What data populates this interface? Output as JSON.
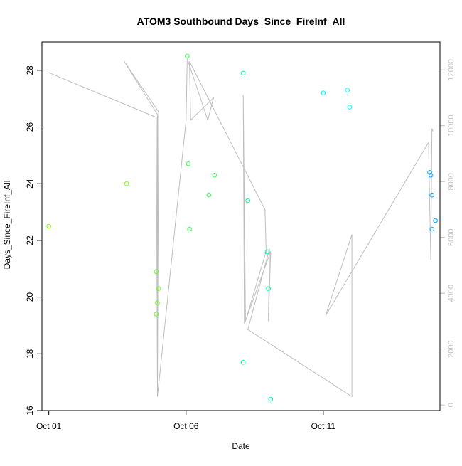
{
  "chart_data": {
    "type": "scatter",
    "title": "ATOM3 Southbound Days_Since_FireInf_All",
    "xlabel": "Date",
    "ylabel": "Days_Since_FireInf_All",
    "y2label": "",
    "xlim": [
      "2016-09-30T18:00",
      "2016-10-15T06:00"
    ],
    "ylim": [
      16,
      29
    ],
    "y2lim": [
      -200,
      13000
    ],
    "x_ticks": [
      {
        "date": "2016-10-01",
        "label": "Oct 01"
      },
      {
        "date": "2016-10-06",
        "label": "Oct 06"
      },
      {
        "date": "2016-10-11",
        "label": "Oct 11"
      }
    ],
    "y_ticks": [
      16,
      18,
      20,
      22,
      24,
      26,
      28
    ],
    "y2_ticks": [
      0,
      2000,
      4000,
      6000,
      8000,
      10000,
      12000
    ],
    "y2_tick_color": "#bebebe",
    "grid": false,
    "points": [
      {
        "x": "2016-10-01T00:00",
        "y": 22.5,
        "color": "#7fff00"
      },
      {
        "x": "2016-10-03T20:00",
        "y": 24.0,
        "color": "#7fff00"
      },
      {
        "x": "2016-10-04T22:00",
        "y": 20.9,
        "color": "#66ff1a"
      },
      {
        "x": "2016-10-04T22:00",
        "y": 19.4,
        "color": "#66ff1a"
      },
      {
        "x": "2016-10-04T23:00",
        "y": 19.8,
        "color": "#66ff1a"
      },
      {
        "x": "2016-10-05T00:00",
        "y": 20.3,
        "color": "#66ff1a"
      },
      {
        "x": "2016-10-06T01:00",
        "y": 28.5,
        "color": "#33ff4d"
      },
      {
        "x": "2016-10-06T02:00",
        "y": 24.7,
        "color": "#33ff4d"
      },
      {
        "x": "2016-10-06T03:00",
        "y": 22.4,
        "color": "#33ff4d"
      },
      {
        "x": "2016-10-06T20:00",
        "y": 23.6,
        "color": "#33ff4d"
      },
      {
        "x": "2016-10-07T01:00",
        "y": 24.3,
        "color": "#33ff4d"
      },
      {
        "x": "2016-10-08T02:00",
        "y": 27.9,
        "color": "#00ffa0"
      },
      {
        "x": "2016-10-08T02:00",
        "y": 17.7,
        "color": "#00ffa0"
      },
      {
        "x": "2016-10-08T06:00",
        "y": 23.4,
        "color": "#00ffa0"
      },
      {
        "x": "2016-10-08T23:00",
        "y": 21.6,
        "color": "#00ffa0"
      },
      {
        "x": "2016-10-09T00:00",
        "y": 20.3,
        "color": "#00ffa0"
      },
      {
        "x": "2016-10-09T02:00",
        "y": 16.4,
        "color": "#00ffa0"
      },
      {
        "x": "2016-10-11T00:00",
        "y": 27.2,
        "color": "#00ffff"
      },
      {
        "x": "2016-10-11T21:00",
        "y": 27.3,
        "color": "#00ffff"
      },
      {
        "x": "2016-10-11T23:00",
        "y": 26.7,
        "color": "#00ffff"
      },
      {
        "x": "2016-10-14T21:00",
        "y": 24.4,
        "color": "#00a0ff"
      },
      {
        "x": "2016-10-14T22:00",
        "y": 24.3,
        "color": "#00a0ff"
      },
      {
        "x": "2016-10-14T23:00",
        "y": 23.6,
        "color": "#00a0ff"
      },
      {
        "x": "2016-10-15T02:00",
        "y": 22.7,
        "color": "#00a0ff"
      },
      {
        "x": "2016-10-14T23:00",
        "y": 22.4,
        "color": "#00a0ff"
      }
    ],
    "line": {
      "color": "#bebebe",
      "axis": "right",
      "points": [
        {
          "x": "2016-10-01T00:00",
          "y": 11900
        },
        {
          "x": "2016-10-04T22:00",
          "y": 10300
        },
        {
          "x": "2016-10-04T23:00",
          "y": 300
        },
        {
          "x": "2016-10-04T23:00",
          "y": 10400
        },
        {
          "x": "2016-10-03T18:00",
          "y": 12300
        },
        {
          "x": "2016-10-05T00:00",
          "y": 10500
        },
        {
          "x": "2016-10-04T23:00",
          "y": 300
        },
        {
          "x": "2016-10-06T00:00",
          "y": 10200
        },
        {
          "x": "2016-10-06T01:00",
          "y": 12400
        },
        {
          "x": "2016-10-06T19:00",
          "y": 10200
        },
        {
          "x": "2016-10-07T00:00",
          "y": 11000
        },
        {
          "x": "2016-10-06T04:00",
          "y": 10200
        },
        {
          "x": "2016-10-06T03:00",
          "y": 12300
        },
        {
          "x": "2016-10-08T21:00",
          "y": 7000
        },
        {
          "x": "2016-10-08T22:00",
          "y": 5500
        },
        {
          "x": "2016-10-08T04:00",
          "y": 3000
        },
        {
          "x": "2016-10-08T02:00",
          "y": 11100
        },
        {
          "x": "2016-10-08T03:00",
          "y": 2900
        },
        {
          "x": "2016-10-09T02:00",
          "y": 5500
        },
        {
          "x": "2016-10-09T00:00",
          "y": 3000
        },
        {
          "x": "2016-10-09T01:00",
          "y": 5600
        },
        {
          "x": "2016-10-08T06:00",
          "y": 2700
        },
        {
          "x": "2016-10-12T01:00",
          "y": 300
        },
        {
          "x": "2016-10-12T01:00",
          "y": 6100
        },
        {
          "x": "2016-10-11T02:00",
          "y": 3200
        },
        {
          "x": "2016-10-14T20:00",
          "y": 9400
        },
        {
          "x": "2016-10-14T22:00",
          "y": 5200
        },
        {
          "x": "2016-10-14T23:00",
          "y": 9900
        },
        {
          "x": "2016-10-15T00:00",
          "y": 9800
        }
      ]
    }
  }
}
